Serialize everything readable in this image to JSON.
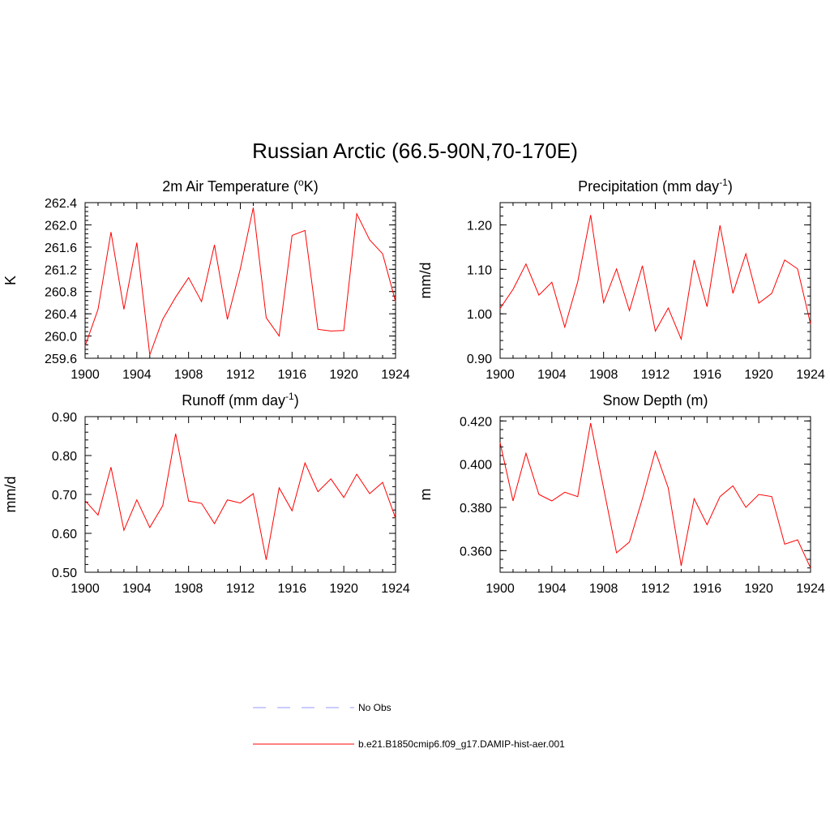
{
  "figure": {
    "title": "Russian Arctic (66.5-90N,70-170E)"
  },
  "legend": [
    {
      "label": "No Obs",
      "color": "#9999ff",
      "style": "dashed"
    },
    {
      "label": "b.e21.B1850cmip6.f09_g17.DAMIP-hist-aer.001",
      "color": "#ff0000",
      "style": "solid"
    }
  ],
  "chart_data": [
    {
      "type": "line",
      "title": "2m Air Temperature (",
      "title_sup": "o",
      "title_tail": "K)",
      "ylabel": "K",
      "xlim": [
        1900,
        1924
      ],
      "ylim": [
        259.6,
        262.4
      ],
      "xticks": [
        "1900",
        "1904",
        "1908",
        "1912",
        "1916",
        "1920",
        "1924"
      ],
      "yticks": [
        "259.6",
        "260.0",
        "260.4",
        "260.8",
        "261.2",
        "261.6",
        "262.0",
        "262.4"
      ],
      "x": [
        1900,
        1901,
        1902,
        1903,
        1904,
        1905,
        1906,
        1907,
        1908,
        1909,
        1910,
        1911,
        1912,
        1913,
        1914,
        1915,
        1916,
        1917,
        1918,
        1919,
        1920,
        1921,
        1922,
        1923,
        1924
      ],
      "series": [
        {
          "color": "#ff0000",
          "values": [
            259.82,
            260.48,
            261.87,
            260.48,
            261.68,
            259.66,
            260.3,
            260.7,
            261.05,
            260.62,
            261.64,
            260.3,
            261.21,
            262.31,
            260.33,
            260.0,
            261.81,
            261.9,
            260.12,
            260.09,
            260.1,
            262.2,
            261.73,
            261.48,
            260.62
          ]
        }
      ]
    },
    {
      "type": "line",
      "title": "Precipitation (mm day",
      "title_sup": "-1",
      "title_tail": ")",
      "ylabel": "mm/d",
      "xlim": [
        1900,
        1924
      ],
      "ylim": [
        0.9,
        1.25
      ],
      "xticks": [
        "1900",
        "1904",
        "1908",
        "1912",
        "1916",
        "1920",
        "1924"
      ],
      "yticks": [
        "0.90",
        "1.00",
        "1.10",
        "1.20"
      ],
      "ytick_values": [
        0.9,
        1.0,
        1.1,
        1.2
      ],
      "x": [
        1900,
        1901,
        1902,
        1903,
        1904,
        1905,
        1906,
        1907,
        1908,
        1909,
        1910,
        1911,
        1912,
        1913,
        1914,
        1915,
        1916,
        1917,
        1918,
        1919,
        1920,
        1921,
        1922,
        1923,
        1924
      ],
      "series": [
        {
          "color": "#ff0000",
          "values": [
            1.012,
            1.055,
            1.112,
            1.042,
            1.071,
            0.97,
            1.072,
            1.222,
            1.025,
            1.101,
            1.007,
            1.108,
            0.961,
            1.013,
            0.943,
            1.121,
            1.016,
            1.199,
            1.046,
            1.135,
            1.024,
            1.046,
            1.121,
            1.101,
            0.977
          ]
        }
      ]
    },
    {
      "type": "line",
      "title": "Runoff (mm day",
      "title_sup": "-1",
      "title_tail": ")",
      "ylabel": "mm/d",
      "xlim": [
        1900,
        1924
      ],
      "ylim": [
        0.5,
        0.9
      ],
      "xticks": [
        "1900",
        "1904",
        "1908",
        "1912",
        "1916",
        "1920",
        "1924"
      ],
      "yticks": [
        "0.50",
        "0.60",
        "0.70",
        "0.80",
        "0.90"
      ],
      "x": [
        1900,
        1901,
        1902,
        1903,
        1904,
        1905,
        1906,
        1907,
        1908,
        1909,
        1910,
        1911,
        1912,
        1913,
        1914,
        1915,
        1916,
        1917,
        1918,
        1919,
        1920,
        1921,
        1922,
        1923,
        1924
      ],
      "series": [
        {
          "color": "#ff0000",
          "values": [
            0.684,
            0.647,
            0.77,
            0.608,
            0.686,
            0.615,
            0.671,
            0.856,
            0.683,
            0.677,
            0.625,
            0.686,
            0.678,
            0.702,
            0.532,
            0.717,
            0.658,
            0.781,
            0.707,
            0.74,
            0.692,
            0.752,
            0.702,
            0.731,
            0.639
          ]
        }
      ]
    },
    {
      "type": "line",
      "title": "Snow Depth (m)",
      "title_sup": "",
      "title_tail": "",
      "ylabel": "m",
      "xlim": [
        1900,
        1924
      ],
      "ylim": [
        0.35,
        0.422
      ],
      "xticks": [
        "1900",
        "1904",
        "1908",
        "1912",
        "1916",
        "1920",
        "1924"
      ],
      "yticks": [
        "0.360",
        "0.380",
        "0.400",
        "0.420"
      ],
      "ytick_values": [
        0.36,
        0.38,
        0.4,
        0.42
      ],
      "x": [
        1900,
        1901,
        1902,
        1903,
        1904,
        1905,
        1906,
        1907,
        1908,
        1909,
        1910,
        1911,
        1912,
        1913,
        1914,
        1915,
        1916,
        1917,
        1918,
        1919,
        1920,
        1921,
        1922,
        1923,
        1924
      ],
      "series": [
        {
          "color": "#ff0000",
          "values": [
            0.41,
            0.383,
            0.405,
            0.386,
            0.383,
            0.387,
            0.385,
            0.419,
            0.389,
            0.359,
            0.364,
            0.384,
            0.406,
            0.389,
            0.353,
            0.384,
            0.372,
            0.385,
            0.39,
            0.38,
            0.386,
            0.385,
            0.363,
            0.365,
            0.352
          ]
        }
      ]
    }
  ]
}
